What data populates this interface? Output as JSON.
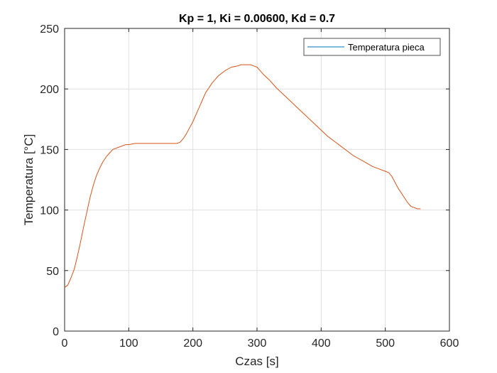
{
  "chart_data": {
    "type": "line",
    "title": "Kp = 1, Ki = 0.00600, Kd = 0.7",
    "xlabel": "Czas [s]",
    "ylabel": "Temperatura [°C]",
    "xlim": [
      0,
      600
    ],
    "ylim": [
      0,
      250
    ],
    "xticks": [
      0,
      100,
      200,
      300,
      400,
      500,
      600
    ],
    "yticks": [
      0,
      50,
      100,
      150,
      200,
      250
    ],
    "xtick_labels": [
      "0",
      "100",
      "200",
      "300",
      "400",
      "500",
      "600"
    ],
    "ytick_labels": [
      "0",
      "50",
      "100",
      "150",
      "200",
      "250"
    ],
    "grid": true,
    "legend_position": "top-right",
    "series": [
      {
        "name": "Temperatura pieca",
        "color": "#d95319",
        "legend_color": "#0072bd",
        "x": [
          0,
          5,
          10,
          15,
          20,
          25,
          30,
          35,
          40,
          45,
          50,
          55,
          60,
          65,
          70,
          75,
          80,
          85,
          90,
          95,
          100,
          110,
          120,
          130,
          140,
          150,
          160,
          170,
          175,
          180,
          185,
          190,
          195,
          200,
          205,
          210,
          215,
          220,
          225,
          230,
          235,
          240,
          250,
          260,
          270,
          275,
          280,
          285,
          290,
          295,
          300,
          305,
          310,
          320,
          330,
          340,
          350,
          360,
          370,
          380,
          390,
          400,
          410,
          420,
          430,
          440,
          450,
          460,
          470,
          480,
          490,
          500,
          505,
          510,
          515,
          520,
          525,
          530,
          535,
          540,
          545,
          550,
          555
        ],
        "y": [
          36,
          38,
          44,
          51,
          62,
          74,
          87,
          99,
          111,
          121,
          129,
          135,
          140,
          144,
          147,
          150,
          151,
          152,
          153,
          154,
          154,
          155,
          155,
          155,
          155,
          155,
          155,
          155,
          155,
          156,
          159,
          163,
          168,
          173,
          179,
          185,
          191,
          197,
          201,
          205,
          208,
          211,
          215,
          218,
          219,
          220,
          220,
          220,
          220,
          219,
          218,
          215,
          212,
          207,
          201,
          196,
          191,
          186,
          181,
          176,
          171,
          166,
          161,
          157,
          153,
          149,
          145,
          142,
          139,
          136,
          134,
          132,
          131,
          128,
          123,
          118,
          114,
          110,
          106,
          103,
          102,
          101,
          101
        ]
      }
    ]
  }
}
